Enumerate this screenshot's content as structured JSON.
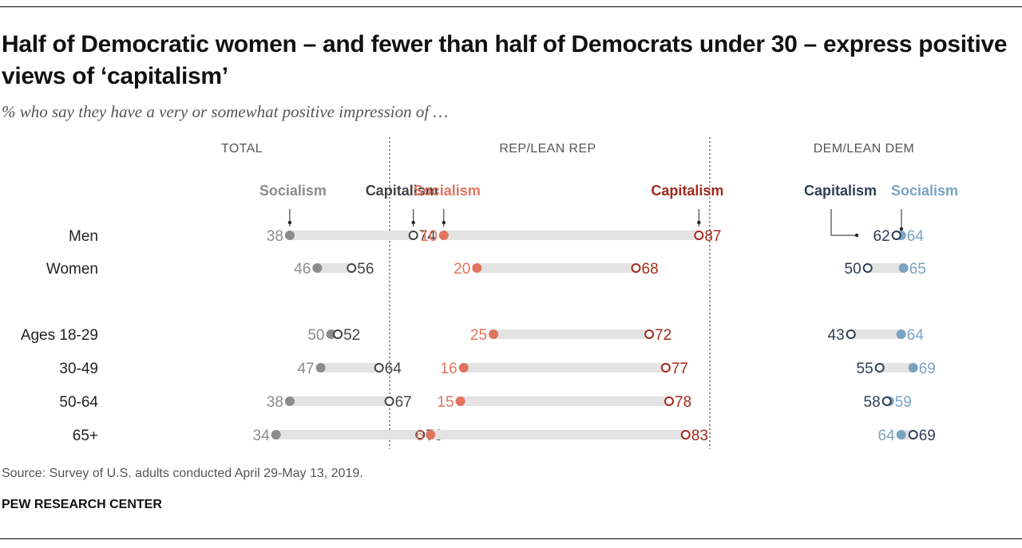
{
  "title": "Half of Democratic women – and fewer than half of Democrats under 30 – express positive views of ‘capitalism’",
  "subtitle": "% who say they have a very or somewhat positive impression of …",
  "source": "Source: Survey of U.S. adults conducted April 29-May 13, 2019.",
  "organization": "PEW RESEARCH CENTER",
  "chart_data": {
    "type": "dot",
    "categories": [
      "Men",
      "Women",
      "Ages 18-29",
      "30-49",
      "50-64",
      "65+"
    ],
    "panels": [
      {
        "name": "TOTAL",
        "colors": {
          "socialism": "#8c8c8c",
          "capitalism": "#444444"
        },
        "series": [
          {
            "name": "Socialism",
            "values": [
              38,
              46,
              50,
              47,
              38,
              34
            ]
          },
          {
            "name": "Capitalism",
            "values": [
              74,
              56,
              52,
              64,
              67,
              76
            ]
          }
        ]
      },
      {
        "name": "REP/LEAN REP",
        "colors": {
          "socialism": "#e2735f",
          "capitalism": "#a12a1c"
        },
        "series": [
          {
            "name": "Socialism",
            "values": [
              10,
              20,
              25,
              16,
              15,
              6
            ]
          },
          {
            "name": "Capitalism",
            "values": [
              87,
              68,
              72,
              77,
              78,
              83
            ]
          }
        ]
      },
      {
        "name": "DEM/LEAN DEM",
        "colors": {
          "socialism": "#7ba3c2",
          "capitalism": "#2d3f56"
        },
        "series": [
          {
            "name": "Socialism",
            "values": [
              64,
              65,
              64,
              69,
              59,
              64
            ]
          },
          {
            "name": "Capitalism",
            "values": [
              62,
              50,
              43,
              55,
              58,
              69
            ]
          }
        ]
      }
    ],
    "legend_placement": "top of each panel",
    "track_color": "#e3e3e3"
  }
}
